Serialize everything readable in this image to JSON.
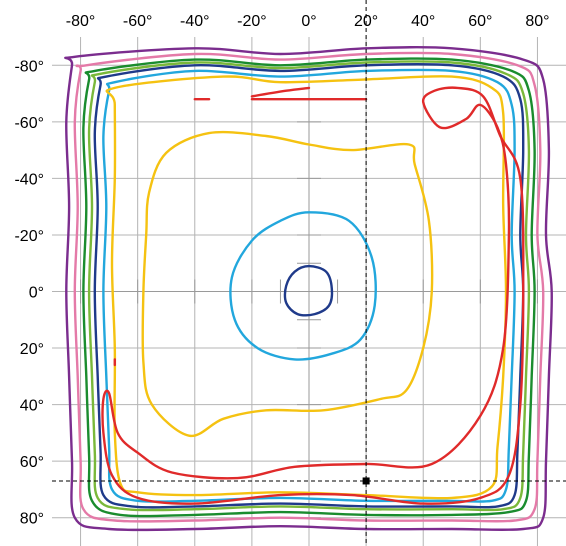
{
  "chart_data": {
    "type": "contour",
    "title": "",
    "xlabel": "",
    "ylabel": "",
    "xlim": [
      -90,
      90
    ],
    "ylim": [
      -90,
      90
    ],
    "y_inverted": true,
    "x_ticks": [
      -80,
      -60,
      -40,
      -20,
      0,
      20,
      40,
      60,
      80
    ],
    "y_ticks": [
      -80,
      -60,
      -40,
      -20,
      0,
      20,
      40,
      60,
      80
    ],
    "x_tick_labels": [
      "-80°",
      "-60°",
      "-40°",
      "-20°",
      "0°",
      "20°",
      "40°",
      "60°",
      "80°"
    ],
    "y_tick_labels": [
      "-80°",
      "-60°",
      "-40°",
      "-20°",
      "0°",
      "20°",
      "40°",
      "60°",
      "80°"
    ],
    "grid": true,
    "x_axis_position": "top",
    "reference_point": {
      "x": 20,
      "y": 67
    },
    "contours": [
      {
        "color": "#7b2d8e",
        "points": [
          [
            -82,
            -83
          ],
          [
            -40,
            -86
          ],
          [
            -10,
            -84
          ],
          [
            20,
            -86
          ],
          [
            50,
            -86
          ],
          [
            75,
            -82
          ],
          [
            82,
            -75
          ],
          [
            84,
            -50
          ],
          [
            83,
            -20
          ],
          [
            85,
            0
          ],
          [
            84,
            30
          ],
          [
            83,
            60
          ],
          [
            82,
            80
          ],
          [
            75,
            84
          ],
          [
            50,
            84
          ],
          [
            20,
            84
          ],
          [
            -10,
            83
          ],
          [
            -40,
            84
          ],
          [
            -70,
            84
          ],
          [
            -82,
            80
          ],
          [
            -83,
            60
          ],
          [
            -84,
            30
          ],
          [
            -85,
            0
          ],
          [
            -84,
            -30
          ],
          [
            -85,
            -60
          ],
          [
            -83,
            -80
          ]
        ]
      },
      {
        "color": "#e47aa8",
        "points": [
          [
            -78,
            -80
          ],
          [
            -40,
            -84
          ],
          [
            -10,
            -82
          ],
          [
            20,
            -84
          ],
          [
            50,
            -84
          ],
          [
            73,
            -80
          ],
          [
            79,
            -73
          ],
          [
            81,
            -50
          ],
          [
            80,
            -20
          ],
          [
            82,
            0
          ],
          [
            81,
            30
          ],
          [
            80,
            60
          ],
          [
            79,
            77
          ],
          [
            72,
            81
          ],
          [
            50,
            81
          ],
          [
            20,
            81
          ],
          [
            -10,
            80
          ],
          [
            -40,
            81
          ],
          [
            -68,
            81
          ],
          [
            -79,
            77
          ],
          [
            -80,
            60
          ],
          [
            -81,
            30
          ],
          [
            -82,
            0
          ],
          [
            -81,
            -30
          ],
          [
            -82,
            -60
          ],
          [
            -80,
            -78
          ]
        ]
      },
      {
        "color": "#1a8c2e",
        "points": [
          [
            -75,
            -78
          ],
          [
            -40,
            -82
          ],
          [
            -10,
            -80
          ],
          [
            20,
            -82
          ],
          [
            50,
            -82
          ],
          [
            71,
            -78
          ],
          [
            77,
            -71
          ],
          [
            79,
            -50
          ],
          [
            78,
            -20
          ],
          [
            79,
            0
          ],
          [
            78,
            30
          ],
          [
            77,
            58
          ],
          [
            76,
            74
          ],
          [
            70,
            78
          ],
          [
            50,
            79
          ],
          [
            20,
            79
          ],
          [
            -10,
            78
          ],
          [
            -40,
            79
          ],
          [
            -66,
            79
          ],
          [
            -76,
            74
          ],
          [
            -77,
            58
          ],
          [
            -78,
            30
          ],
          [
            -79,
            0
          ],
          [
            -78,
            -30
          ],
          [
            -79,
            -58
          ],
          [
            -77,
            -75
          ]
        ]
      },
      {
        "color": "#7ab83a",
        "points": [
          [
            -73,
            -77
          ],
          [
            -40,
            -81
          ],
          [
            -10,
            -79
          ],
          [
            20,
            -81
          ],
          [
            50,
            -81
          ],
          [
            69,
            -77
          ],
          [
            75,
            -70
          ],
          [
            77,
            -50
          ],
          [
            76,
            -20
          ],
          [
            77,
            0
          ],
          [
            76,
            30
          ],
          [
            75,
            57
          ],
          [
            74,
            73
          ],
          [
            68,
            77
          ],
          [
            50,
            77
          ],
          [
            20,
            77
          ],
          [
            -10,
            76
          ],
          [
            -40,
            77
          ],
          [
            -64,
            77
          ],
          [
            -74,
            73
          ],
          [
            -75,
            57
          ],
          [
            -76,
            30
          ],
          [
            -77,
            0
          ],
          [
            -76,
            -30
          ],
          [
            -77,
            -57
          ],
          [
            -75,
            -74
          ]
        ]
      },
      {
        "color": "#1f3a8a",
        "points": [
          [
            -71,
            -76
          ],
          [
            -40,
            -80
          ],
          [
            -10,
            -78
          ],
          [
            20,
            -80
          ],
          [
            50,
            -80
          ],
          [
            68,
            -76
          ],
          [
            74,
            -68
          ],
          [
            75,
            -50
          ],
          [
            74,
            -20
          ],
          [
            75,
            0
          ],
          [
            74,
            30
          ],
          [
            73,
            56
          ],
          [
            72,
            72
          ],
          [
            66,
            76
          ],
          [
            50,
            76
          ],
          [
            20,
            76
          ],
          [
            -10,
            75
          ],
          [
            -40,
            76
          ],
          [
            -62,
            76
          ],
          [
            -72,
            72
          ],
          [
            -73,
            56
          ],
          [
            -74,
            30
          ],
          [
            -75,
            0
          ],
          [
            -74,
            -30
          ],
          [
            -75,
            -56
          ],
          [
            -73,
            -73
          ]
        ]
      },
      {
        "color": "#22a7dd",
        "points": [
          [
            -68,
            -74
          ],
          [
            -40,
            -78
          ],
          [
            -10,
            -76
          ],
          [
            20,
            -78
          ],
          [
            50,
            -78
          ],
          [
            66,
            -74
          ],
          [
            71,
            -66
          ],
          [
            72,
            -50
          ],
          [
            71,
            -20
          ],
          [
            72,
            0
          ],
          [
            71,
            30
          ],
          [
            70,
            55
          ],
          [
            69,
            70
          ],
          [
            64,
            74
          ],
          [
            48,
            74
          ],
          [
            20,
            74
          ],
          [
            -10,
            73
          ],
          [
            -40,
            74
          ],
          [
            -60,
            74
          ],
          [
            -69,
            70
          ],
          [
            -70,
            55
          ],
          [
            -71,
            30
          ],
          [
            -72,
            0
          ],
          [
            -71,
            -30
          ],
          [
            -72,
            -55
          ],
          [
            -70,
            -71
          ]
        ]
      },
      {
        "color": "#f5c211",
        "points": [
          [
            -68,
            -72
          ],
          [
            -30,
            -76
          ],
          [
            -10,
            -74
          ],
          [
            20,
            -75
          ],
          [
            50,
            -76
          ],
          [
            64,
            -72
          ],
          [
            68,
            -63
          ],
          [
            68,
            -30
          ],
          [
            69,
            0
          ],
          [
            68,
            30
          ],
          [
            66,
            55
          ],
          [
            64,
            69
          ],
          [
            50,
            73
          ],
          [
            20,
            72
          ],
          [
            -10,
            71
          ],
          [
            -40,
            72
          ],
          [
            -60,
            71
          ],
          [
            -66,
            68
          ],
          [
            -68,
            50
          ],
          [
            -68,
            20
          ],
          [
            -69,
            -10
          ],
          [
            -68,
            -40
          ],
          [
            -68,
            -66
          ]
        ]
      },
      {
        "color": "#f5c211",
        "points": [
          [
            -50,
            -49
          ],
          [
            -35,
            -56
          ],
          [
            -15,
            -55
          ],
          [
            0,
            -52
          ],
          [
            15,
            -50
          ],
          [
            35,
            -52
          ],
          [
            37,
            -45
          ],
          [
            42,
            -25
          ],
          [
            43,
            0
          ],
          [
            40,
            20
          ],
          [
            34,
            35
          ],
          [
            25,
            38
          ],
          [
            5,
            42
          ],
          [
            -15,
            42
          ],
          [
            -30,
            45
          ],
          [
            -42,
            51
          ],
          [
            -55,
            40
          ],
          [
            -58,
            25
          ],
          [
            -58,
            0
          ],
          [
            -57,
            -20
          ],
          [
            -56,
            -35
          ]
        ]
      },
      {
        "color": "#22a7dd",
        "points": [
          [
            0,
            -28
          ],
          [
            14,
            -25
          ],
          [
            22,
            -12
          ],
          [
            23,
            5
          ],
          [
            18,
            17
          ],
          [
            8,
            22
          ],
          [
            -5,
            24
          ],
          [
            -18,
            20
          ],
          [
            -26,
            10
          ],
          [
            -27,
            -5
          ],
          [
            -20,
            -18
          ],
          [
            -10,
            -25
          ]
        ]
      },
      {
        "color": "#1f3a8a",
        "points": [
          [
            0,
            -9
          ],
          [
            6,
            -7
          ],
          [
            8,
            -1
          ],
          [
            7,
            5
          ],
          [
            2,
            8
          ],
          [
            -4,
            8
          ],
          [
            -8,
            4
          ],
          [
            -8,
            -2
          ],
          [
            -5,
            -7
          ]
        ]
      },
      {
        "color": "#e02a2a",
        "points": [
          [
            -70,
            36
          ],
          [
            -67,
            50
          ],
          [
            -60,
            57
          ],
          [
            -48,
            64
          ],
          [
            -25,
            66
          ],
          [
            -5,
            62
          ],
          [
            20,
            61
          ],
          [
            43,
            61
          ],
          [
            60,
            44
          ],
          [
            68,
            20
          ],
          [
            70,
            -20
          ],
          [
            69,
            -45
          ],
          [
            66,
            -58
          ],
          [
            60,
            -66
          ],
          [
            55,
            -61
          ],
          [
            46,
            -58
          ],
          [
            40,
            -67
          ],
          [
            44,
            -71
          ],
          [
            52,
            -72
          ],
          [
            61,
            -69
          ],
          [
            67,
            -55
          ],
          [
            74,
            -40
          ],
          [
            75,
            0
          ],
          [
            74,
            40
          ],
          [
            70,
            65
          ],
          [
            60,
            73
          ],
          [
            40,
            75
          ],
          [
            15,
            72
          ],
          [
            -10,
            72
          ],
          [
            -40,
            75
          ],
          [
            -60,
            73
          ],
          [
            -69,
            65
          ],
          [
            -72,
            50
          ],
          [
            -72,
            38
          ]
        ]
      },
      {
        "color": "#e02a2a",
        "points": [
          [
            -20,
            -68
          ],
          [
            -5,
            -68
          ],
          [
            10,
            -68
          ],
          [
            20,
            -68
          ]
        ]
      },
      {
        "color": "#e02a2a",
        "points": [
          [
            -20,
            -69
          ],
          [
            -8,
            -71
          ],
          [
            0,
            -72
          ]
        ]
      },
      {
        "color": "#e02a2a",
        "points": [
          [
            -40,
            -68
          ],
          [
            -35,
            -68
          ]
        ]
      },
      {
        "color": "#e02a2a",
        "points": [
          [
            -68,
            24
          ],
          [
            -68,
            26
          ]
        ]
      }
    ]
  }
}
